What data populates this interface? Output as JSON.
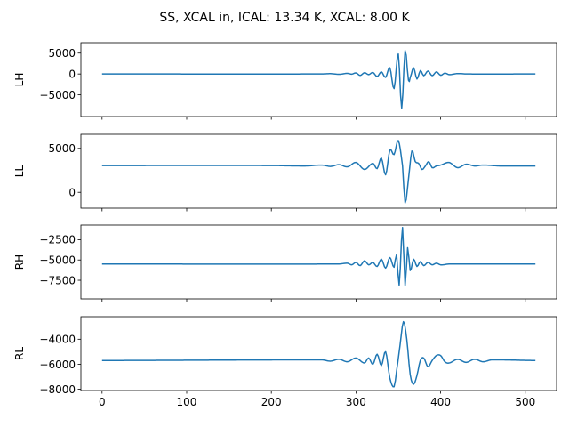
{
  "chart_data": {
    "type": "line",
    "title": "SS, XCAL in, ICAL: 13.34 K, XCAL: 8.00 K",
    "line_color": "#1f77b4",
    "shared_x": true,
    "x_ticks": [
      0,
      100,
      200,
      300,
      400,
      500
    ],
    "xlim": [
      -25,
      537
    ],
    "panels": [
      {
        "id": "LH",
        "ylabel": "LH",
        "ylim": [
          -10200,
          7500
        ],
        "y_ticks": [
          5000,
          0,
          -5000
        ],
        "y_tick_labels": [
          "5000",
          "0",
          "−5000"
        ],
        "baseline": 0,
        "points": [
          [
            0,
            0
          ],
          [
            260,
            0
          ],
          [
            270,
            80
          ],
          [
            280,
            -80
          ],
          [
            290,
            150
          ],
          [
            295,
            -40
          ],
          [
            300,
            250
          ],
          [
            305,
            -350
          ],
          [
            310,
            300
          ],
          [
            315,
            -150
          ],
          [
            320,
            350
          ],
          [
            325,
            -600
          ],
          [
            330,
            500
          ],
          [
            335,
            -800
          ],
          [
            340,
            1500
          ],
          [
            345,
            -3500
          ],
          [
            350,
            4800
          ],
          [
            354,
            -8200
          ],
          [
            358,
            5600
          ],
          [
            362,
            -1500
          ],
          [
            364,
            -900
          ],
          [
            368,
            1500
          ],
          [
            372,
            -1200
          ],
          [
            376,
            800
          ],
          [
            380,
            -400
          ],
          [
            385,
            700
          ],
          [
            390,
            -400
          ],
          [
            395,
            500
          ],
          [
            400,
            -300
          ],
          [
            405,
            200
          ],
          [
            410,
            -150
          ],
          [
            420,
            100
          ],
          [
            430,
            0
          ],
          [
            512,
            0
          ]
        ]
      },
      {
        "id": "LL",
        "ylabel": "LL",
        "ylim": [
          -1800,
          6600
        ],
        "y_ticks": [
          5000,
          0
        ],
        "y_tick_labels": [
          "5000",
          "0"
        ],
        "baseline": 3000,
        "points": [
          [
            0,
            3050
          ],
          [
            200,
            3050
          ],
          [
            240,
            3000
          ],
          [
            260,
            3100
          ],
          [
            270,
            2950
          ],
          [
            280,
            3150
          ],
          [
            290,
            2900
          ],
          [
            300,
            3400
          ],
          [
            310,
            2600
          ],
          [
            320,
            3300
          ],
          [
            325,
            2700
          ],
          [
            330,
            3900
          ],
          [
            335,
            2000
          ],
          [
            340,
            4800
          ],
          [
            345,
            4300
          ],
          [
            350,
            5900
          ],
          [
            355,
            3000
          ],
          [
            358,
            -1200
          ],
          [
            362,
            1500
          ],
          [
            366,
            4700
          ],
          [
            370,
            3500
          ],
          [
            374,
            3300
          ],
          [
            378,
            2600
          ],
          [
            382,
            3000
          ],
          [
            386,
            3500
          ],
          [
            390,
            2800
          ],
          [
            395,
            3000
          ],
          [
            400,
            3100
          ],
          [
            410,
            3400
          ],
          [
            420,
            2800
          ],
          [
            430,
            3200
          ],
          [
            440,
            3000
          ],
          [
            450,
            3100
          ],
          [
            470,
            3000
          ],
          [
            512,
            3000
          ]
        ]
      },
      {
        "id": "RH",
        "ylabel": "RH",
        "ylim": [
          -9800,
          -700
        ],
        "y_ticks": [
          -2500,
          -5000,
          -7500
        ],
        "y_tick_labels": [
          "−2500",
          "−5000",
          "−7500"
        ],
        "baseline": -5500,
        "points": [
          [
            0,
            -5500
          ],
          [
            280,
            -5500
          ],
          [
            290,
            -5400
          ],
          [
            295,
            -5600
          ],
          [
            300,
            -5300
          ],
          [
            305,
            -5700
          ],
          [
            310,
            -5100
          ],
          [
            315,
            -5600
          ],
          [
            320,
            -5300
          ],
          [
            325,
            -5800
          ],
          [
            330,
            -4900
          ],
          [
            335,
            -6000
          ],
          [
            340,
            -4700
          ],
          [
            345,
            -5900
          ],
          [
            348,
            -4300
          ],
          [
            351,
            -8100
          ],
          [
            355,
            -1000
          ],
          [
            358,
            -8200
          ],
          [
            361,
            -3500
          ],
          [
            364,
            -6300
          ],
          [
            368,
            -4900
          ],
          [
            372,
            -5800
          ],
          [
            376,
            -5200
          ],
          [
            380,
            -5700
          ],
          [
            385,
            -5300
          ],
          [
            390,
            -5600
          ],
          [
            395,
            -5400
          ],
          [
            400,
            -5600
          ],
          [
            410,
            -5500
          ],
          [
            512,
            -5500
          ]
        ]
      },
      {
        "id": "RL",
        "ylabel": "RL",
        "ylim": [
          -8100,
          -2200
        ],
        "y_ticks": [
          -4000,
          -6000,
          -8000
        ],
        "y_tick_labels": [
          "−4000",
          "−6000",
          "−8000"
        ],
        "baseline": -5700,
        "points": [
          [
            0,
            -5700
          ],
          [
            260,
            -5650
          ],
          [
            270,
            -5750
          ],
          [
            280,
            -5600
          ],
          [
            290,
            -5800
          ],
          [
            300,
            -5500
          ],
          [
            310,
            -5900
          ],
          [
            315,
            -5500
          ],
          [
            320,
            -6000
          ],
          [
            325,
            -5200
          ],
          [
            330,
            -6100
          ],
          [
            335,
            -5000
          ],
          [
            340,
            -7100
          ],
          [
            345,
            -7800
          ],
          [
            348,
            -6500
          ],
          [
            352,
            -4500
          ],
          [
            356,
            -2600
          ],
          [
            360,
            -4000
          ],
          [
            364,
            -6800
          ],
          [
            368,
            -7600
          ],
          [
            372,
            -6900
          ],
          [
            376,
            -5700
          ],
          [
            380,
            -5500
          ],
          [
            385,
            -6200
          ],
          [
            390,
            -5700
          ],
          [
            395,
            -5300
          ],
          [
            400,
            -5300
          ],
          [
            405,
            -5800
          ],
          [
            410,
            -5900
          ],
          [
            420,
            -5600
          ],
          [
            430,
            -5850
          ],
          [
            440,
            -5600
          ],
          [
            450,
            -5800
          ],
          [
            460,
            -5650
          ],
          [
            512,
            -5700
          ]
        ]
      }
    ]
  }
}
